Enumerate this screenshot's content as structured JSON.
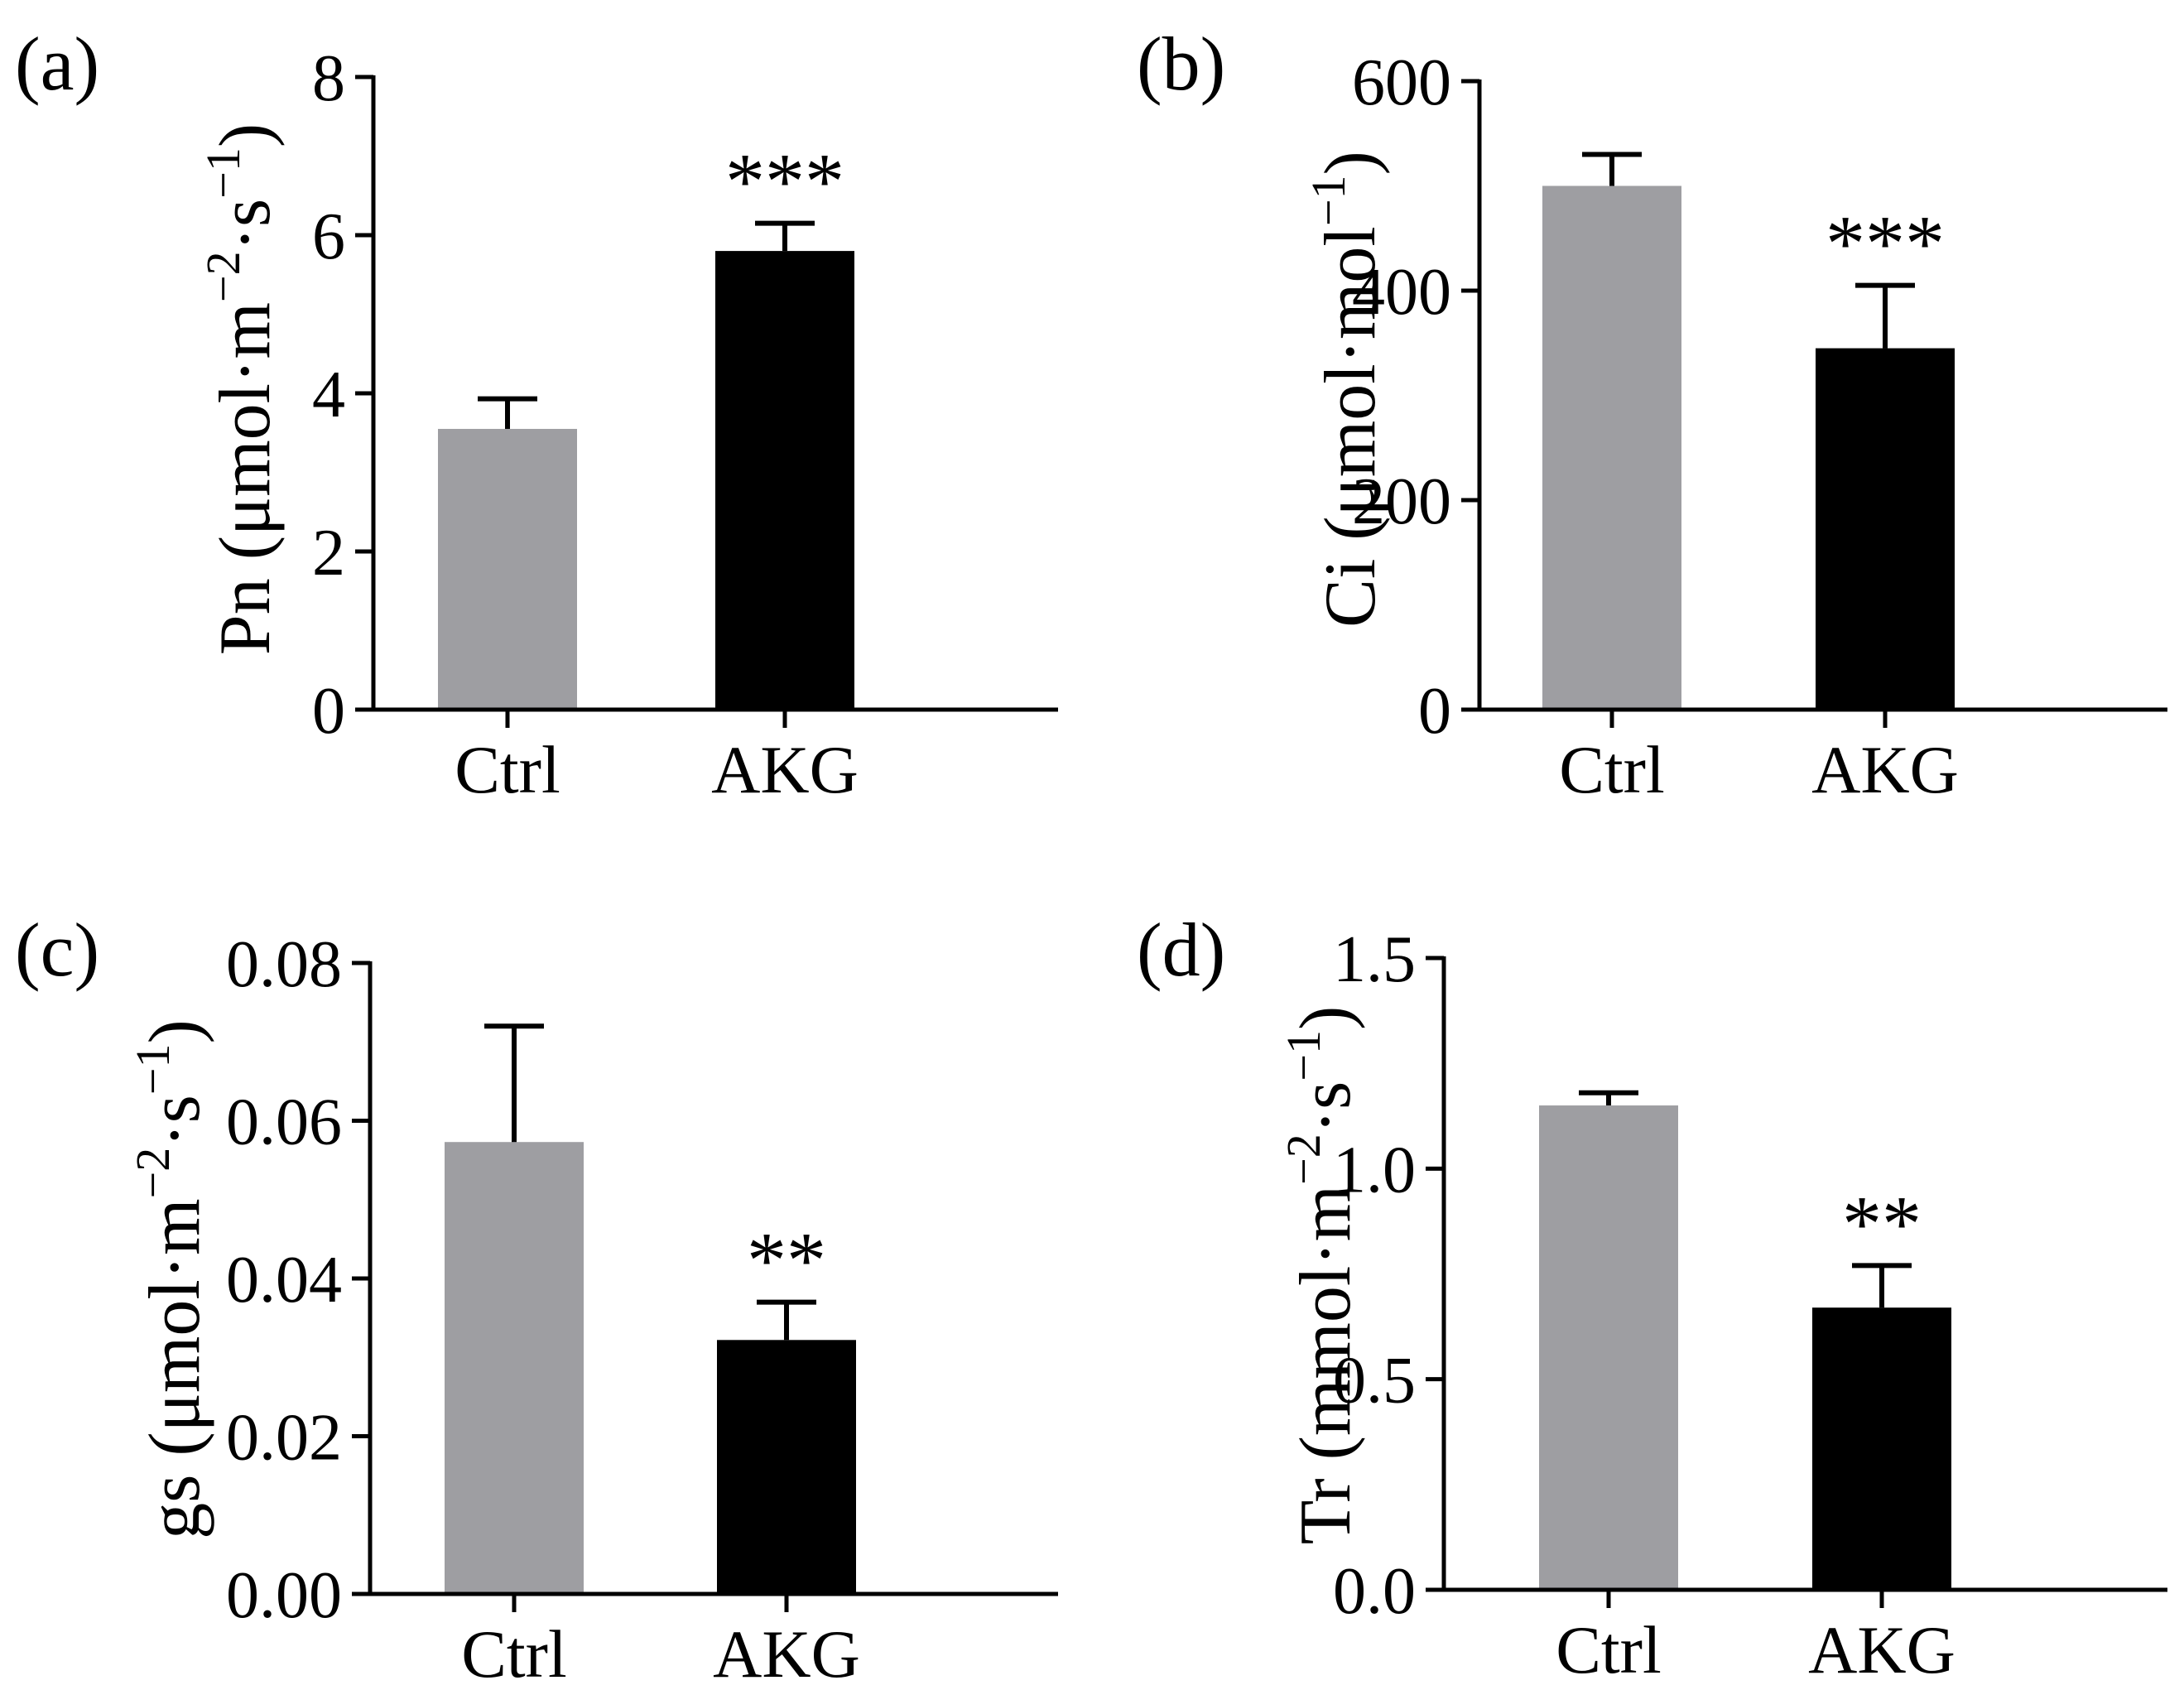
{
  "figure": {
    "background": "#ffffff"
  },
  "chart_data": [
    {
      "type": "bar",
      "panel_label": "(a)",
      "ylabel": {
        "main": "Pn (μmol·m",
        "sup1": "−2",
        "mid": "·s",
        "sup2": "−1",
        "close": ")"
      },
      "categories": [
        "Ctrl",
        "AKG"
      ],
      "values": [
        3.55,
        5.8
      ],
      "errors": [
        0.38,
        0.35
      ],
      "colors": [
        "#9e9ea2",
        "#000000"
      ],
      "significance": "***",
      "ylim": [
        0,
        8
      ],
      "yticks": [
        0,
        2,
        4,
        6,
        8
      ],
      "ytick_labels": [
        "0",
        "2",
        "4",
        "6",
        "8"
      ]
    },
    {
      "type": "bar",
      "panel_label": "(b)",
      "ylabel": {
        "main": "Ci (μmol·mol",
        "sup1": "−1",
        "mid": "",
        "sup2": "",
        "close": ")"
      },
      "categories": [
        "Ctrl",
        "AKG"
      ],
      "values": [
        500,
        345
      ],
      "errors": [
        30,
        60
      ],
      "colors": [
        "#9e9ea2",
        "#000000"
      ],
      "significance": "***",
      "ylim": [
        0,
        600
      ],
      "yticks": [
        0,
        200,
        400,
        600
      ],
      "ytick_labels": [
        "0",
        "200",
        "400",
        "600"
      ]
    },
    {
      "type": "bar",
      "panel_label": "(c)",
      "ylabel": {
        "main": "gs (μmol·m",
        "sup1": "−2",
        "mid": "·s",
        "sup2": "−1",
        "close": ")"
      },
      "categories": [
        "Ctrl",
        "AKG"
      ],
      "values": [
        0.0573,
        0.0322
      ],
      "errors": [
        0.0147,
        0.0048
      ],
      "colors": [
        "#9e9ea2",
        "#000000"
      ],
      "significance": "**",
      "ylim": [
        0,
        0.08
      ],
      "yticks": [
        0,
        0.02,
        0.04,
        0.06,
        0.08
      ],
      "ytick_labels": [
        "0.00",
        "0.02",
        "0.04",
        "0.06",
        "0.08"
      ]
    },
    {
      "type": "bar",
      "panel_label": "(d)",
      "ylabel": {
        "main": "Tr (mmol·m",
        "sup1": "−2",
        "mid": "·s",
        "sup2": "−1",
        "close": ")"
      },
      "categories": [
        "Ctrl",
        "AKG"
      ],
      "values": [
        1.15,
        0.67
      ],
      "errors": [
        0.03,
        0.1
      ],
      "colors": [
        "#9e9ea2",
        "#000000"
      ],
      "significance": "**",
      "ylim": [
        0,
        1.5
      ],
      "yticks": [
        0,
        0.5,
        1.0,
        1.5
      ],
      "ytick_labels": [
        "0.0",
        "0.5",
        "1.0",
        "1.5"
      ]
    }
  ]
}
